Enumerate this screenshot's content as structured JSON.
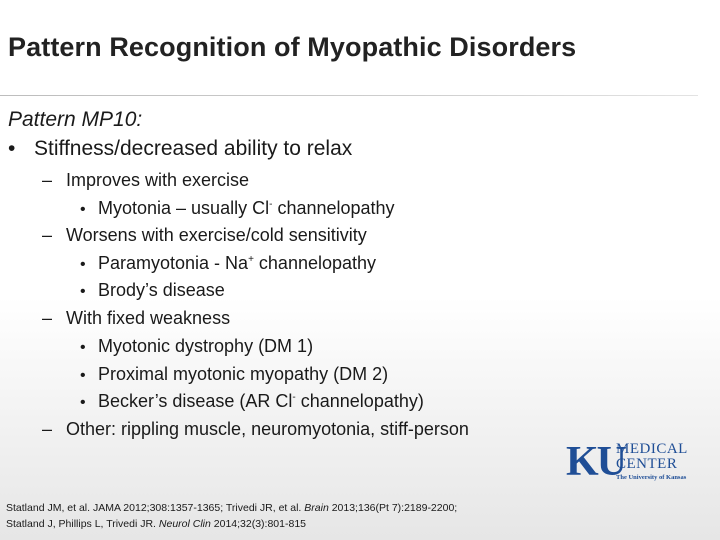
{
  "slide": {
    "title": "Pattern Recognition of Myopathic Disorders",
    "pattern_label": "Pattern MP10:",
    "bullet_marker": "•",
    "dash_marker": "–",
    "lines": [
      {
        "level": 1,
        "text": "Stiffness/decreased ability to relax"
      },
      {
        "level": 2,
        "text": "Improves with exercise"
      },
      {
        "level": 3,
        "text": "Myotonia – usually Cl",
        "sup": "-",
        "after": " channelopathy"
      },
      {
        "level": 2,
        "text": "Worsens with exercise/cold sensitivity"
      },
      {
        "level": 3,
        "text": "Paramyotonia - Na",
        "sup": "+",
        "after": " channelopathy"
      },
      {
        "level": 3,
        "text": "Brody’s disease"
      },
      {
        "level": 2,
        "text": "With fixed weakness"
      },
      {
        "level": 3,
        "text": "Myotonic dystrophy (DM 1)"
      },
      {
        "level": 3,
        "text": "Proximal myotonic myopathy (DM 2)"
      },
      {
        "level": 3,
        "text": "Becker’s disease (AR Cl",
        "sup": "-",
        "after": " channelopathy)"
      },
      {
        "level": 2,
        "text": "Other: rippling muscle, neuromyotonia, stiff-person"
      }
    ]
  },
  "references": [
    {
      "parts": [
        {
          "text": "Statland JM, et al. JAMA 2012;308:1357-1365;  Trivedi JR, et al. ",
          "italic": false
        },
        {
          "text": "Brain",
          "italic": true
        },
        {
          "text": " 2013;136(Pt 7):2189-2200;",
          "italic": false
        }
      ]
    },
    {
      "parts": [
        {
          "text": "Statland J, Phillips L, Trivedi JR. ",
          "italic": false
        },
        {
          "text": "Neurol Clin",
          "italic": true
        },
        {
          "text": " 2014;32(3):801-815",
          "italic": false
        }
      ]
    }
  ],
  "logo": {
    "initials": "KU",
    "line1": "MEDICAL",
    "line2": "CENTER",
    "line3": "The University of Kansas",
    "color": "#1f4e96"
  }
}
